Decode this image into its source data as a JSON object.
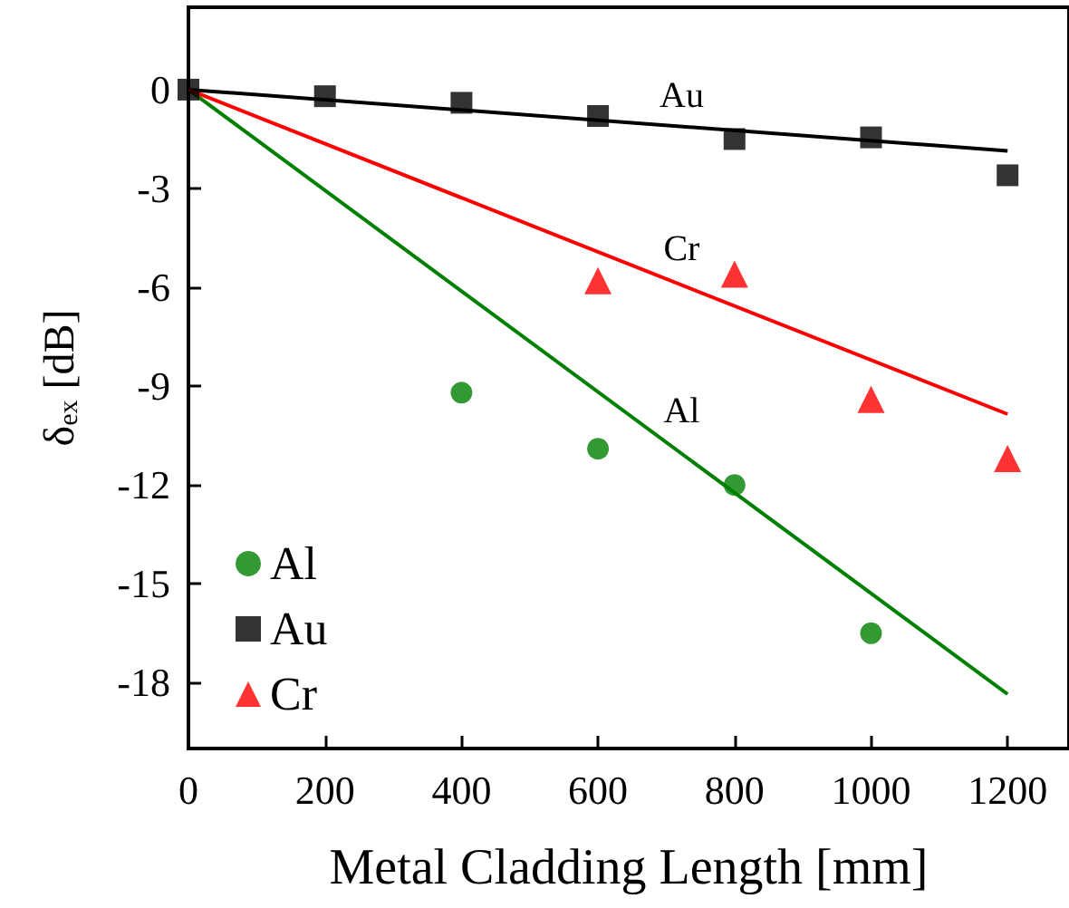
{
  "chart_data": {
    "type": "scatter",
    "xlabel": "Metal Cladding Length [mm]",
    "ylabel": "δ$_{ex}$ [dB]",
    "xlim": [
      0,
      1290
    ],
    "ylim": [
      -20,
      2.5
    ],
    "xticks": [
      0,
      200,
      400,
      600,
      800,
      {
        "value": 1000,
        "label": "1000"
      },
      {
        "value": 1200,
        "label": "1200"
      }
    ],
    "yticks": [
      -18,
      -15,
      -12,
      -9,
      -6,
      -3,
      0
    ],
    "grid": false,
    "legend": "bottom left",
    "series": [
      {
        "name": "Al",
        "marker": "circle",
        "color": "#008000",
        "x": [
          400,
          600,
          800,
          1000
        ],
        "values": [
          -9.2,
          -10.9,
          -12.0,
          -16.5
        ]
      },
      {
        "name": "Au",
        "marker": "square",
        "color": "#000000",
        "x": [
          0,
          200,
          400,
          600,
          800,
          1000,
          1200
        ],
        "values": [
          0,
          -0.2,
          -0.4,
          -0.8,
          -1.5,
          -1.45,
          -2.6
        ]
      },
      {
        "name": "Cr",
        "marker": "triangle",
        "color": "#ff0000",
        "x": [
          600,
          800,
          1000,
          1200
        ],
        "values": [
          -5.8,
          -5.6,
          -9.4,
          -11.2
        ]
      },
      {
        "name": "Al",
        "type": "line",
        "marker": "none",
        "color": "#008000",
        "x": [
          0,
          1200
        ],
        "values": [
          0,
          -18.35
        ]
      },
      {
        "name": "Au",
        "type": "line",
        "marker": "none",
        "color": "#000000",
        "x": [
          0,
          1200
        ],
        "values": [
          0,
          -1.86
        ]
      },
      {
        "name": "Cr",
        "type": "line",
        "marker": "none",
        "color": "#ff0000",
        "x": [
          0,
          1200
        ],
        "values": [
          0,
          -9.85
        ]
      }
    ]
  }
}
